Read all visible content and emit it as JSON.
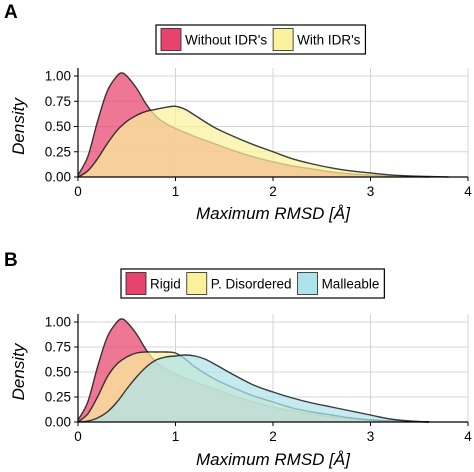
{
  "chart_data": [
    {
      "panel": "A",
      "type": "area",
      "xlabel": "Maximum RMSD [Å]",
      "ylabel": "Density",
      "xlim": [
        0,
        4
      ],
      "ylim": [
        0,
        1.0
      ],
      "xticks": [
        "0",
        "1",
        "2",
        "3",
        "4"
      ],
      "yticks": [
        "0.00",
        "0.25",
        "0.50",
        "0.75",
        "1.00"
      ],
      "legend_position": "top-center",
      "series": [
        {
          "name": "Without IDR's",
          "color": "#e8436d",
          "x": [
            0,
            0.1,
            0.2,
            0.3,
            0.4,
            0.45,
            0.5,
            0.6,
            0.7,
            0.8,
            0.9,
            1.0,
            1.1,
            1.2,
            1.4,
            1.6,
            1.8,
            2.0,
            2.2,
            2.4,
            2.6,
            2.8,
            3.0,
            3.2,
            3.4,
            3.6
          ],
          "values": [
            0.02,
            0.2,
            0.55,
            0.85,
            1.0,
            1.03,
            1.0,
            0.88,
            0.72,
            0.6,
            0.53,
            0.48,
            0.44,
            0.4,
            0.33,
            0.26,
            0.2,
            0.15,
            0.11,
            0.08,
            0.05,
            0.03,
            0.02,
            0.01,
            0.005,
            0
          ]
        },
        {
          "name": "With IDR's",
          "color": "#fbf19c",
          "x": [
            0,
            0.1,
            0.2,
            0.3,
            0.4,
            0.5,
            0.6,
            0.7,
            0.8,
            0.9,
            1.0,
            1.1,
            1.2,
            1.4,
            1.6,
            1.8,
            2.0,
            2.2,
            2.4,
            2.6,
            2.8,
            3.0,
            3.2,
            3.4,
            3.6,
            3.8
          ],
          "values": [
            0.0,
            0.06,
            0.18,
            0.33,
            0.46,
            0.55,
            0.61,
            0.65,
            0.67,
            0.69,
            0.7,
            0.67,
            0.61,
            0.49,
            0.4,
            0.32,
            0.25,
            0.18,
            0.13,
            0.09,
            0.06,
            0.04,
            0.02,
            0.01,
            0.005,
            0
          ]
        }
      ]
    },
    {
      "panel": "B",
      "type": "area",
      "xlabel": "Maximum RMSD [Å]",
      "ylabel": "Density",
      "xlim": [
        0,
        4
      ],
      "ylim": [
        0,
        1.0
      ],
      "xticks": [
        "0",
        "1",
        "2",
        "3",
        "4"
      ],
      "yticks": [
        "0.00",
        "0.25",
        "0.50",
        "0.75",
        "1.00"
      ],
      "legend_position": "top-center",
      "series": [
        {
          "name": "Rigid",
          "color": "#e8436d",
          "x": [
            0,
            0.1,
            0.2,
            0.3,
            0.4,
            0.45,
            0.5,
            0.6,
            0.7,
            0.8,
            0.9,
            1.0,
            1.1,
            1.2,
            1.4,
            1.6,
            1.8,
            2.0,
            2.2,
            2.4,
            2.6,
            2.8,
            3.0,
            3.2,
            3.4,
            3.6
          ],
          "values": [
            0.02,
            0.2,
            0.55,
            0.85,
            1.0,
            1.03,
            1.0,
            0.88,
            0.72,
            0.6,
            0.53,
            0.48,
            0.44,
            0.4,
            0.33,
            0.26,
            0.2,
            0.15,
            0.11,
            0.08,
            0.05,
            0.03,
            0.02,
            0.01,
            0.005,
            0
          ]
        },
        {
          "name": "P. Disordered",
          "color": "#fbf19c",
          "x": [
            0,
            0.1,
            0.2,
            0.3,
            0.4,
            0.5,
            0.6,
            0.7,
            0.8,
            0.9,
            1.0,
            1.1,
            1.2,
            1.4,
            1.6,
            1.8,
            2.0,
            2.2,
            2.4,
            2.6,
            2.8,
            3.0,
            3.2,
            3.4,
            3.6
          ],
          "values": [
            0.0,
            0.08,
            0.25,
            0.45,
            0.58,
            0.65,
            0.69,
            0.7,
            0.7,
            0.7,
            0.69,
            0.63,
            0.55,
            0.43,
            0.34,
            0.26,
            0.2,
            0.14,
            0.1,
            0.07,
            0.04,
            0.02,
            0.01,
            0.005,
            0
          ]
        },
        {
          "name": "Malleable",
          "color": "#aee3ec",
          "x": [
            0,
            0.1,
            0.2,
            0.3,
            0.4,
            0.5,
            0.6,
            0.7,
            0.8,
            0.9,
            1.0,
            1.1,
            1.2,
            1.3,
            1.4,
            1.6,
            1.8,
            2.0,
            2.2,
            2.4,
            2.6,
            2.8,
            3.0,
            3.2,
            3.4,
            3.6
          ],
          "values": [
            0.0,
            0.01,
            0.04,
            0.1,
            0.2,
            0.33,
            0.45,
            0.55,
            0.62,
            0.65,
            0.66,
            0.67,
            0.66,
            0.63,
            0.58,
            0.47,
            0.37,
            0.3,
            0.24,
            0.19,
            0.15,
            0.11,
            0.07,
            0.03,
            0.01,
            0
          ]
        }
      ]
    }
  ]
}
